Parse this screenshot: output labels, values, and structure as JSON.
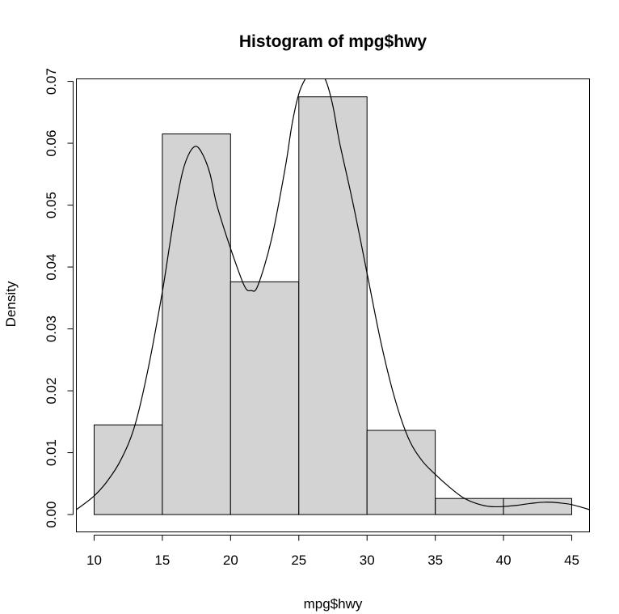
{
  "chart_data": {
    "type": "bar",
    "subtype": "histogram",
    "title": "Histogram of mpg$hwy",
    "xlabel": "mpg$hwy",
    "ylabel": "Density",
    "xlim": [
      8.7,
      46.3
    ],
    "ylim": [
      -0.0028,
      0.0704
    ],
    "bins": [
      {
        "from": 10,
        "to": 15,
        "density": 0.0145
      },
      {
        "from": 15,
        "to": 20,
        "density": 0.0615
      },
      {
        "from": 20,
        "to": 25,
        "density": 0.0376
      },
      {
        "from": 25,
        "to": 30,
        "density": 0.0675
      },
      {
        "from": 30,
        "to": 35,
        "density": 0.0136
      },
      {
        "from": 35,
        "to": 40,
        "density": 0.0026
      },
      {
        "from": 40,
        "to": 45,
        "density": 0.0026
      }
    ],
    "x_ticks": [
      10,
      15,
      20,
      25,
      30,
      35,
      40,
      45
    ],
    "x_tick_labels": [
      "10",
      "15",
      "20",
      "25",
      "30",
      "35",
      "40",
      "45"
    ],
    "y_ticks": [
      0,
      0.01,
      0.02,
      0.03,
      0.04,
      0.05,
      0.06,
      0.07
    ],
    "y_tick_labels": [
      "0.00",
      "0.01",
      "0.02",
      "0.03",
      "0.04",
      "0.05",
      "0.06",
      "0.07"
    ],
    "density_curve": {
      "x": [
        8.7,
        10,
        11,
        12,
        13,
        14,
        15,
        15.5,
        16,
        16.5,
        17,
        17.5,
        18,
        18.5,
        19,
        20,
        21,
        21.5,
        22,
        23,
        24,
        24.5,
        25,
        25.5,
        26,
        26.5,
        27,
        27.5,
        28,
        29,
        30,
        31,
        32,
        33,
        34,
        35,
        36,
        37,
        38,
        39,
        40,
        41,
        42,
        43,
        44,
        45,
        46.3
      ],
      "y": [
        0.0008,
        0.003,
        0.0055,
        0.009,
        0.0145,
        0.024,
        0.036,
        0.043,
        0.05,
        0.0555,
        0.0585,
        0.0595,
        0.058,
        0.055,
        0.05,
        0.043,
        0.037,
        0.0362,
        0.037,
        0.0445,
        0.056,
        0.063,
        0.068,
        0.0705,
        0.072,
        0.0715,
        0.07,
        0.066,
        0.06,
        0.05,
        0.039,
        0.028,
        0.019,
        0.0125,
        0.0088,
        0.0065,
        0.0045,
        0.0028,
        0.0018,
        0.0013,
        0.0013,
        0.0015,
        0.0018,
        0.002,
        0.0019,
        0.0016,
        0.0008
      ]
    }
  }
}
